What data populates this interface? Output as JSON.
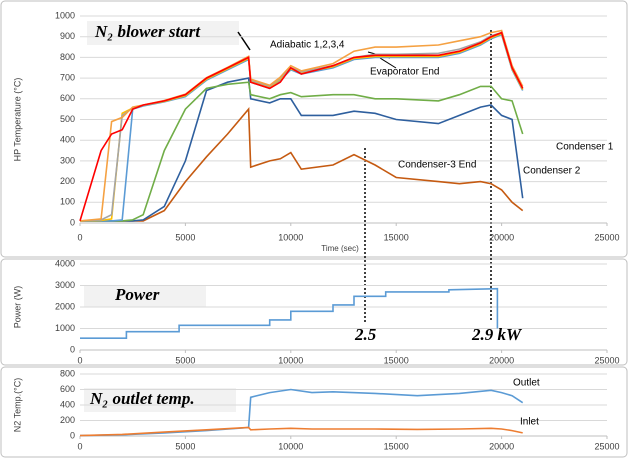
{
  "chart_data": [
    {
      "type": "line",
      "ylabel": "HP Temperature (°C)",
      "xlabel": "Time (sec)",
      "annotations": [
        "N₂ blower start",
        "Adiabatic 1,2,3,4",
        "Evaporator End",
        "Condenser 1",
        "Condenser 2",
        "Condenser-3 End"
      ],
      "x": [
        0,
        1000,
        1500,
        2000,
        2500,
        3000,
        4000,
        5000,
        6000,
        7000,
        8000,
        8100,
        9000,
        9500,
        10000,
        10500,
        12000,
        13000,
        14000,
        15000,
        17000,
        18000,
        19000,
        19500,
        20000,
        20500,
        21000
      ],
      "series": [
        {
          "color": "#c55a11",
          "values": [
            10,
            10,
            10,
            10,
            10,
            10,
            60,
            200,
            320,
            430,
            550,
            270,
            300,
            310,
            340,
            260,
            280,
            330,
            280,
            220,
            200,
            190,
            200,
            190,
            160,
            100,
            60
          ]
        },
        {
          "color": "#2e5f9e",
          "values": [
            10,
            10,
            10,
            10,
            10,
            15,
            80,
            300,
            640,
            680,
            700,
            600,
            580,
            600,
            600,
            520,
            520,
            540,
            530,
            500,
            480,
            520,
            560,
            570,
            520,
            500,
            120
          ]
        },
        {
          "color": "#70ad47",
          "values": [
            10,
            10,
            10,
            10,
            15,
            40,
            350,
            550,
            650,
            670,
            680,
            620,
            600,
            620,
            630,
            610,
            620,
            620,
            600,
            600,
            590,
            620,
            660,
            660,
            600,
            590,
            430
          ]
        },
        {
          "color": "#5b9bd5",
          "values": [
            10,
            10,
            10,
            15,
            550,
            565,
            585,
            610,
            690,
            740,
            790,
            680,
            650,
            690,
            740,
            720,
            750,
            790,
            800,
            800,
            800,
            820,
            860,
            890,
            910,
            740,
            640
          ]
        },
        {
          "color": "#ffc000",
          "values": [
            10,
            12,
            20,
            530,
            555,
            568,
            588,
            615,
            695,
            745,
            795,
            685,
            655,
            695,
            745,
            725,
            755,
            795,
            805,
            805,
            805,
            825,
            865,
            895,
            915,
            745,
            645
          ]
        },
        {
          "color": "#a5a5a5",
          "values": [
            10,
            15,
            40,
            520,
            555,
            568,
            590,
            620,
            700,
            750,
            800,
            690,
            660,
            700,
            750,
            730,
            760,
            800,
            815,
            815,
            820,
            840,
            875,
            905,
            920,
            750,
            650
          ]
        },
        {
          "color": "#f5a142",
          "values": [
            10,
            20,
            490,
            510,
            560,
            570,
            592,
            622,
            702,
            752,
            805,
            695,
            665,
            705,
            760,
            735,
            770,
            830,
            850,
            850,
            860,
            880,
            900,
            920,
            930,
            760,
            660
          ]
        },
        {
          "color": "#ff0000",
          "values": [
            10,
            350,
            430,
            450,
            550,
            570,
            590,
            620,
            700,
            750,
            800,
            680,
            650,
            680,
            750,
            720,
            760,
            800,
            810,
            810,
            810,
            830,
            870,
            900,
            920,
            750,
            650
          ]
        }
      ],
      "xlim": [
        0,
        25000
      ],
      "xticks": [
        0,
        5000,
        10000,
        15000,
        20000,
        25000
      ],
      "ylim": [
        0,
        1000
      ],
      "yticks": [
        0,
        100,
        200,
        300,
        400,
        500,
        600,
        700,
        800,
        900,
        1000
      ],
      "grid": true
    },
    {
      "type": "line",
      "ylabel": "Power (W)",
      "annotations": [
        "Power",
        "2.5",
        "2.9 kW"
      ],
      "x": [
        0,
        2200,
        2200,
        4700,
        4700,
        9000,
        9000,
        10000,
        10000,
        12000,
        12000,
        13000,
        13000,
        14500,
        14500,
        17500,
        17500,
        19800,
        19800
      ],
      "series": [
        {
          "color": "#5b9bd5",
          "values": [
            550,
            550,
            850,
            850,
            1150,
            1150,
            1400,
            1400,
            1800,
            1800,
            2100,
            2100,
            2500,
            2500,
            2700,
            2700,
            2800,
            2850,
            1000
          ]
        }
      ],
      "xlim": [
        0,
        25000
      ],
      "xticks": [
        0,
        5000,
        10000,
        15000,
        20000,
        25000
      ],
      "ylim": [
        0,
        4000
      ],
      "yticks": [
        0,
        1000,
        2000,
        3000,
        4000
      ],
      "grid": true
    },
    {
      "type": "line",
      "ylabel": "N2 Temp.(°C)",
      "annotations": [
        "N₂ outlet temp.",
        "Outlet",
        "Inlet"
      ],
      "x": [
        0,
        2000,
        4000,
        6000,
        8000,
        8100,
        9000,
        10000,
        11000,
        12000,
        14000,
        16000,
        18000,
        19500,
        20000,
        20500,
        21000
      ],
      "series": [
        {
          "color": "#5b9bd5",
          "values": [
            5,
            15,
            40,
            70,
            110,
            500,
            560,
            600,
            560,
            570,
            550,
            520,
            550,
            590,
            560,
            520,
            430
          ]
        },
        {
          "color": "#ed7d31",
          "values": [
            5,
            20,
            50,
            80,
            110,
            80,
            90,
            100,
            90,
            90,
            90,
            85,
            90,
            100,
            90,
            70,
            40
          ]
        }
      ],
      "xlim": [
        0,
        25000
      ],
      "xticks": [
        0,
        5000,
        10000,
        15000,
        20000,
        25000
      ],
      "ylim": [
        0,
        800
      ],
      "yticks": [
        0,
        200,
        400,
        600,
        800
      ],
      "grid": true
    }
  ]
}
